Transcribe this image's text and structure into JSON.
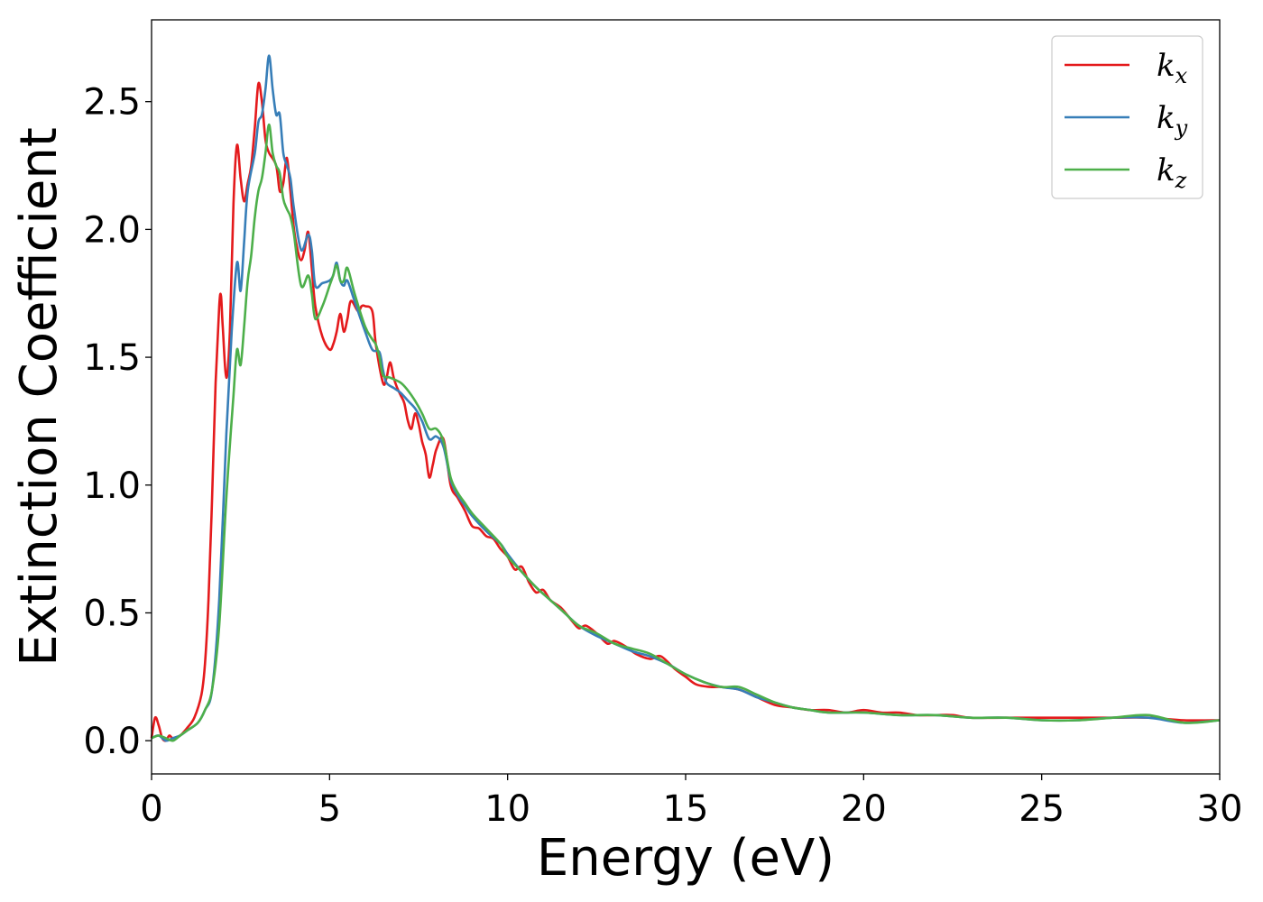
{
  "chart_data": {
    "type": "line",
    "title": "",
    "xlabel": "Energy (eV)",
    "ylabel": "Extinction Coefficient",
    "xlim": [
      0,
      30
    ],
    "ylim": [
      -0.13,
      2.82
    ],
    "xticks": [
      "0",
      "5",
      "10",
      "15",
      "20",
      "25",
      "30"
    ],
    "yticks": [
      "0.0",
      "0.5",
      "1.0",
      "1.5",
      "2.0",
      "2.5"
    ],
    "grid": false,
    "legend_position": "top-right",
    "series": [
      {
        "name": "k_x",
        "legend": {
          "base": "k",
          "sub": "x"
        },
        "color": "#e41a1c",
        "points": [
          [
            0,
            0.01
          ],
          [
            0.1,
            0.09
          ],
          [
            0.2,
            0.06
          ],
          [
            0.3,
            0.01
          ],
          [
            0.4,
            0.0
          ],
          [
            0.5,
            0.02
          ],
          [
            0.6,
            0.01
          ],
          [
            0.8,
            0.02
          ],
          [
            1.0,
            0.05
          ],
          [
            1.2,
            0.09
          ],
          [
            1.4,
            0.18
          ],
          [
            1.5,
            0.3
          ],
          [
            1.6,
            0.55
          ],
          [
            1.7,
            0.95
          ],
          [
            1.8,
            1.4
          ],
          [
            1.9,
            1.7
          ],
          [
            1.95,
            1.74
          ],
          [
            2.0,
            1.62
          ],
          [
            2.1,
            1.42
          ],
          [
            2.2,
            1.6
          ],
          [
            2.3,
            2.1
          ],
          [
            2.4,
            2.33
          ],
          [
            2.5,
            2.2
          ],
          [
            2.6,
            2.11
          ],
          [
            2.7,
            2.18
          ],
          [
            2.8,
            2.25
          ],
          [
            2.9,
            2.4
          ],
          [
            3.0,
            2.57
          ],
          [
            3.1,
            2.5
          ],
          [
            3.2,
            2.35
          ],
          [
            3.3,
            2.3
          ],
          [
            3.5,
            2.25
          ],
          [
            3.6,
            2.15
          ],
          [
            3.7,
            2.18
          ],
          [
            3.8,
            2.28
          ],
          [
            3.9,
            2.15
          ],
          [
            4.0,
            2.0
          ],
          [
            4.1,
            1.92
          ],
          [
            4.2,
            1.88
          ],
          [
            4.3,
            1.92
          ],
          [
            4.4,
            1.99
          ],
          [
            4.5,
            1.85
          ],
          [
            4.6,
            1.7
          ],
          [
            4.8,
            1.58
          ],
          [
            5.0,
            1.53
          ],
          [
            5.1,
            1.55
          ],
          [
            5.2,
            1.6
          ],
          [
            5.3,
            1.67
          ],
          [
            5.4,
            1.6
          ],
          [
            5.5,
            1.65
          ],
          [
            5.6,
            1.72
          ],
          [
            5.8,
            1.68
          ],
          [
            5.9,
            1.7
          ],
          [
            6.0,
            1.7
          ],
          [
            6.2,
            1.68
          ],
          [
            6.3,
            1.55
          ],
          [
            6.5,
            1.4
          ],
          [
            6.6,
            1.42
          ],
          [
            6.7,
            1.48
          ],
          [
            6.8,
            1.42
          ],
          [
            6.9,
            1.38
          ],
          [
            7.0,
            1.35
          ],
          [
            7.1,
            1.32
          ],
          [
            7.2,
            1.25
          ],
          [
            7.3,
            1.22
          ],
          [
            7.4,
            1.28
          ],
          [
            7.5,
            1.24
          ],
          [
            7.6,
            1.17
          ],
          [
            7.7,
            1.12
          ],
          [
            7.8,
            1.03
          ],
          [
            7.9,
            1.08
          ],
          [
            8.0,
            1.14
          ],
          [
            8.2,
            1.18
          ],
          [
            8.4,
            1.0
          ],
          [
            8.6,
            0.95
          ],
          [
            8.8,
            0.9
          ],
          [
            9.0,
            0.84
          ],
          [
            9.2,
            0.83
          ],
          [
            9.4,
            0.8
          ],
          [
            9.6,
            0.79
          ],
          [
            9.8,
            0.75
          ],
          [
            10.0,
            0.72
          ],
          [
            10.2,
            0.67
          ],
          [
            10.4,
            0.68
          ],
          [
            10.6,
            0.62
          ],
          [
            10.8,
            0.58
          ],
          [
            11.0,
            0.59
          ],
          [
            11.2,
            0.55
          ],
          [
            11.5,
            0.52
          ],
          [
            11.8,
            0.47
          ],
          [
            12.0,
            0.44
          ],
          [
            12.2,
            0.45
          ],
          [
            12.5,
            0.42
          ],
          [
            12.8,
            0.38
          ],
          [
            13.0,
            0.39
          ],
          [
            13.3,
            0.37
          ],
          [
            13.6,
            0.34
          ],
          [
            14.0,
            0.32
          ],
          [
            14.3,
            0.33
          ],
          [
            14.7,
            0.28
          ],
          [
            15.0,
            0.25
          ],
          [
            15.3,
            0.22
          ],
          [
            15.7,
            0.21
          ],
          [
            16.0,
            0.21
          ],
          [
            16.5,
            0.2
          ],
          [
            17.0,
            0.17
          ],
          [
            17.5,
            0.14
          ],
          [
            18.0,
            0.13
          ],
          [
            18.5,
            0.12
          ],
          [
            19.0,
            0.12
          ],
          [
            19.5,
            0.11
          ],
          [
            20.0,
            0.12
          ],
          [
            20.5,
            0.11
          ],
          [
            21.0,
            0.11
          ],
          [
            21.5,
            0.1
          ],
          [
            22.0,
            0.1
          ],
          [
            22.5,
            0.1
          ],
          [
            23.0,
            0.09
          ],
          [
            24.0,
            0.09
          ],
          [
            25.0,
            0.09
          ],
          [
            26.0,
            0.09
          ],
          [
            27.0,
            0.09
          ],
          [
            28.0,
            0.09
          ],
          [
            29.0,
            0.08
          ],
          [
            30.0,
            0.08
          ]
        ]
      },
      {
        "name": "k_y",
        "legend": {
          "base": "k",
          "sub": "y"
        },
        "color": "#377eb8",
        "points": [
          [
            0,
            0.01
          ],
          [
            0.2,
            0.02
          ],
          [
            0.4,
            0.0
          ],
          [
            0.6,
            0.01
          ],
          [
            0.8,
            0.02
          ],
          [
            1.0,
            0.04
          ],
          [
            1.3,
            0.07
          ],
          [
            1.5,
            0.12
          ],
          [
            1.7,
            0.2
          ],
          [
            1.9,
            0.55
          ],
          [
            2.1,
            1.2
          ],
          [
            2.25,
            1.6
          ],
          [
            2.4,
            1.87
          ],
          [
            2.5,
            1.76
          ],
          [
            2.6,
            1.95
          ],
          [
            2.7,
            2.15
          ],
          [
            2.9,
            2.3
          ],
          [
            3.0,
            2.42
          ],
          [
            3.1,
            2.45
          ],
          [
            3.2,
            2.55
          ],
          [
            3.3,
            2.68
          ],
          [
            3.4,
            2.55
          ],
          [
            3.5,
            2.45
          ],
          [
            3.6,
            2.45
          ],
          [
            3.7,
            2.3
          ],
          [
            3.8,
            2.25
          ],
          [
            3.9,
            2.2
          ],
          [
            4.0,
            2.08
          ],
          [
            4.2,
            1.92
          ],
          [
            4.4,
            1.98
          ],
          [
            4.5,
            1.92
          ],
          [
            4.6,
            1.78
          ],
          [
            4.8,
            1.79
          ],
          [
            5.0,
            1.8
          ],
          [
            5.1,
            1.82
          ],
          [
            5.2,
            1.87
          ],
          [
            5.3,
            1.8
          ],
          [
            5.4,
            1.78
          ],
          [
            5.5,
            1.8
          ],
          [
            5.7,
            1.72
          ],
          [
            6.0,
            1.6
          ],
          [
            6.2,
            1.53
          ],
          [
            6.4,
            1.52
          ],
          [
            6.5,
            1.45
          ],
          [
            6.6,
            1.4
          ],
          [
            6.8,
            1.38
          ],
          [
            7.0,
            1.36
          ],
          [
            7.2,
            1.33
          ],
          [
            7.4,
            1.3
          ],
          [
            7.6,
            1.25
          ],
          [
            7.8,
            1.18
          ],
          [
            8.0,
            1.19
          ],
          [
            8.2,
            1.15
          ],
          [
            8.4,
            1.02
          ],
          [
            8.6,
            0.96
          ],
          [
            8.8,
            0.92
          ],
          [
            9.0,
            0.88
          ],
          [
            9.4,
            0.82
          ],
          [
            9.8,
            0.77
          ],
          [
            10.0,
            0.73
          ],
          [
            10.4,
            0.66
          ],
          [
            10.8,
            0.6
          ],
          [
            11.2,
            0.55
          ],
          [
            11.6,
            0.5
          ],
          [
            12.0,
            0.45
          ],
          [
            12.5,
            0.41
          ],
          [
            13.0,
            0.38
          ],
          [
            13.5,
            0.35
          ],
          [
            14.0,
            0.33
          ],
          [
            14.5,
            0.3
          ],
          [
            15.0,
            0.26
          ],
          [
            15.5,
            0.23
          ],
          [
            16.0,
            0.21
          ],
          [
            16.5,
            0.2
          ],
          [
            17.0,
            0.17
          ],
          [
            17.5,
            0.15
          ],
          [
            18.0,
            0.13
          ],
          [
            18.5,
            0.12
          ],
          [
            19.0,
            0.11
          ],
          [
            20.0,
            0.11
          ],
          [
            21.0,
            0.1
          ],
          [
            22.0,
            0.1
          ],
          [
            23.0,
            0.09
          ],
          [
            24.0,
            0.09
          ],
          [
            25.0,
            0.08
          ],
          [
            26.0,
            0.08
          ],
          [
            27.0,
            0.09
          ],
          [
            28.0,
            0.09
          ],
          [
            29.0,
            0.07
          ],
          [
            30.0,
            0.08
          ]
        ]
      },
      {
        "name": "k_z",
        "legend": {
          "base": "k",
          "sub": "z"
        },
        "color": "#4daf4a",
        "points": [
          [
            0,
            0.01
          ],
          [
            0.2,
            0.02
          ],
          [
            0.4,
            0.01
          ],
          [
            0.6,
            0.0
          ],
          [
            0.8,
            0.02
          ],
          [
            1.0,
            0.04
          ],
          [
            1.3,
            0.07
          ],
          [
            1.5,
            0.12
          ],
          [
            1.7,
            0.2
          ],
          [
            1.9,
            0.45
          ],
          [
            2.1,
            0.95
          ],
          [
            2.3,
            1.35
          ],
          [
            2.4,
            1.53
          ],
          [
            2.5,
            1.47
          ],
          [
            2.6,
            1.62
          ],
          [
            2.7,
            1.8
          ],
          [
            2.8,
            1.9
          ],
          [
            2.9,
            2.05
          ],
          [
            3.0,
            2.15
          ],
          [
            3.1,
            2.2
          ],
          [
            3.2,
            2.3
          ],
          [
            3.3,
            2.41
          ],
          [
            3.4,
            2.3
          ],
          [
            3.5,
            2.25
          ],
          [
            3.6,
            2.22
          ],
          [
            3.7,
            2.12
          ],
          [
            3.8,
            2.08
          ],
          [
            3.9,
            2.05
          ],
          [
            4.0,
            1.98
          ],
          [
            4.2,
            1.78
          ],
          [
            4.4,
            1.82
          ],
          [
            4.5,
            1.75
          ],
          [
            4.6,
            1.65
          ],
          [
            4.8,
            1.7
          ],
          [
            5.0,
            1.78
          ],
          [
            5.1,
            1.82
          ],
          [
            5.2,
            1.86
          ],
          [
            5.3,
            1.8
          ],
          [
            5.4,
            1.8
          ],
          [
            5.5,
            1.85
          ],
          [
            5.7,
            1.75
          ],
          [
            6.0,
            1.62
          ],
          [
            6.2,
            1.57
          ],
          [
            6.3,
            1.55
          ],
          [
            6.4,
            1.5
          ],
          [
            6.5,
            1.43
          ],
          [
            6.7,
            1.42
          ],
          [
            7.0,
            1.4
          ],
          [
            7.2,
            1.37
          ],
          [
            7.4,
            1.33
          ],
          [
            7.6,
            1.28
          ],
          [
            7.8,
            1.22
          ],
          [
            8.0,
            1.22
          ],
          [
            8.2,
            1.17
          ],
          [
            8.4,
            1.03
          ],
          [
            8.6,
            0.97
          ],
          [
            8.8,
            0.93
          ],
          [
            9.0,
            0.89
          ],
          [
            9.4,
            0.83
          ],
          [
            9.8,
            0.77
          ],
          [
            10.0,
            0.72
          ],
          [
            10.4,
            0.66
          ],
          [
            10.8,
            0.6
          ],
          [
            11.2,
            0.55
          ],
          [
            11.6,
            0.5
          ],
          [
            12.0,
            0.45
          ],
          [
            12.5,
            0.42
          ],
          [
            13.0,
            0.38
          ],
          [
            13.5,
            0.36
          ],
          [
            14.0,
            0.34
          ],
          [
            14.5,
            0.3
          ],
          [
            15.0,
            0.26
          ],
          [
            15.5,
            0.23
          ],
          [
            16.0,
            0.21
          ],
          [
            16.5,
            0.21
          ],
          [
            17.0,
            0.18
          ],
          [
            17.5,
            0.15
          ],
          [
            18.0,
            0.13
          ],
          [
            18.5,
            0.12
          ],
          [
            19.0,
            0.11
          ],
          [
            20.0,
            0.11
          ],
          [
            21.0,
            0.1
          ],
          [
            22.0,
            0.1
          ],
          [
            23.0,
            0.09
          ],
          [
            24.0,
            0.09
          ],
          [
            25.0,
            0.08
          ],
          [
            26.0,
            0.08
          ],
          [
            27.0,
            0.09
          ],
          [
            28.0,
            0.1
          ],
          [
            29.0,
            0.07
          ],
          [
            30.0,
            0.08
          ]
        ]
      }
    ]
  }
}
